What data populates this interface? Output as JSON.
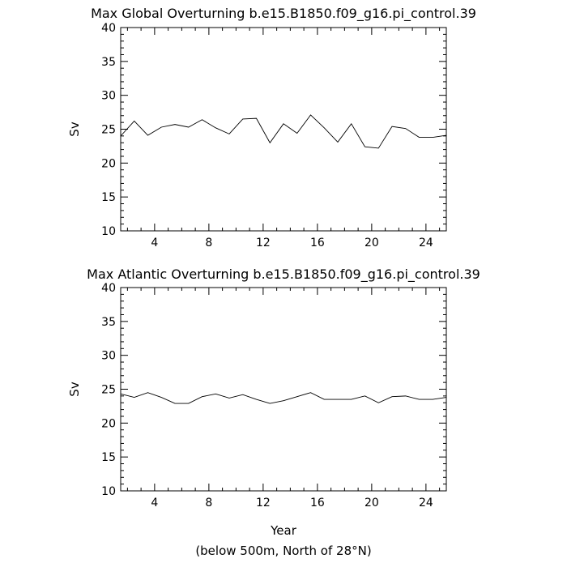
{
  "chart_data": [
    {
      "type": "line",
      "title": "Max Global Overturning b.e15.B1850.f09_g16.pi_control.39",
      "ylabel": "Sv",
      "xlabel": "",
      "xlim": [
        1.5,
        25.5
      ],
      "ylim": [
        10,
        40
      ],
      "x_ticks": [
        4,
        8,
        12,
        16,
        20,
        24
      ],
      "y_ticks": [
        10,
        15,
        20,
        25,
        30,
        35,
        40
      ],
      "x_minor_step": 1,
      "y_minor_step": 1,
      "series": [
        {
          "x": [
            1.5,
            2.5,
            3.5,
            4.5,
            5.5,
            6.5,
            7.5,
            8.5,
            9.5,
            10.5,
            11.5,
            12.5,
            13.5,
            14.5,
            15.5,
            16.5,
            17.5,
            18.5,
            19.5,
            20.5,
            21.5,
            22.5,
            23.5,
            24.5,
            25.5
          ],
          "values": [
            24.0,
            26.2,
            24.1,
            25.3,
            25.7,
            25.3,
            26.4,
            25.2,
            24.3,
            26.5,
            26.6,
            23.0,
            25.8,
            24.4,
            27.1,
            25.2,
            23.1,
            25.8,
            22.4,
            22.2,
            25.4,
            25.1,
            23.8,
            23.8,
            24.1
          ]
        }
      ]
    },
    {
      "type": "line",
      "title": "Max Atlantic Overturning b.e15.B1850.f09_g16.pi_control.39",
      "ylabel": "Sv",
      "xlabel": "Year",
      "xlim": [
        1.5,
        25.5
      ],
      "ylim": [
        10,
        40
      ],
      "x_ticks": [
        4,
        8,
        12,
        16,
        20,
        24
      ],
      "y_ticks": [
        10,
        15,
        20,
        25,
        30,
        35,
        40
      ],
      "x_minor_step": 1,
      "y_minor_step": 1,
      "series": [
        {
          "x": [
            1.5,
            2.5,
            3.5,
            4.5,
            5.5,
            6.5,
            7.5,
            8.5,
            9.5,
            10.5,
            11.5,
            12.5,
            13.5,
            14.5,
            15.5,
            16.5,
            17.5,
            18.5,
            19.5,
            20.5,
            21.5,
            22.5,
            23.5,
            24.5,
            25.5
          ],
          "values": [
            24.3,
            23.8,
            24.5,
            23.8,
            22.9,
            22.9,
            23.9,
            24.3,
            23.7,
            24.2,
            23.5,
            22.9,
            23.3,
            23.9,
            24.5,
            23.5,
            23.5,
            23.5,
            24.0,
            23.0,
            23.9,
            24.0,
            23.5,
            23.5,
            23.8
          ]
        }
      ]
    }
  ],
  "caption": "(below 500m, North of 28°N)"
}
